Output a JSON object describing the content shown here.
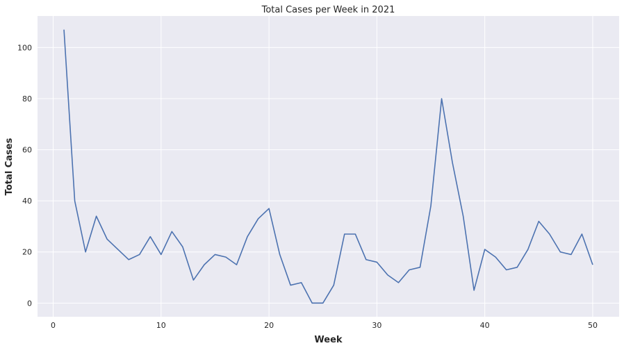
{
  "chart_data": {
    "type": "line",
    "title": "Total Cases per Week in 2021",
    "xlabel": "Week",
    "ylabel": "Total Cases",
    "xlim": [
      -1.45,
      52.45
    ],
    "ylim": [
      -5.35,
      112.35
    ],
    "xticks": [
      0,
      10,
      20,
      30,
      40,
      50
    ],
    "yticks": [
      0,
      20,
      40,
      60,
      80,
      100
    ],
    "grid": true,
    "colors": {
      "background": "#eaeaf2",
      "grid": "#ffffff",
      "line": "#4c72b0"
    },
    "series": [
      {
        "x": [
          1,
          2,
          3,
          4,
          5,
          6,
          7,
          8,
          9,
          10,
          11,
          12,
          13,
          14,
          15,
          16,
          17,
          18,
          19,
          20,
          21,
          22,
          23,
          24,
          25,
          26,
          27,
          28,
          29,
          30,
          31,
          32,
          33,
          34,
          35,
          36,
          37,
          38,
          39,
          40,
          41,
          42,
          43,
          44,
          45,
          46,
          47,
          48,
          49,
          50
        ],
        "values": [
          107,
          40,
          20,
          34,
          25,
          21,
          17,
          19,
          26,
          19,
          28,
          22,
          9,
          15,
          19,
          18,
          15,
          26,
          33,
          37,
          19,
          7,
          8,
          0,
          0,
          7,
          27,
          27,
          17,
          16,
          11,
          8,
          13,
          14,
          38,
          80,
          55,
          34,
          5,
          21,
          18,
          13,
          14,
          21,
          32,
          27,
          20,
          19,
          27,
          15
        ]
      }
    ]
  }
}
